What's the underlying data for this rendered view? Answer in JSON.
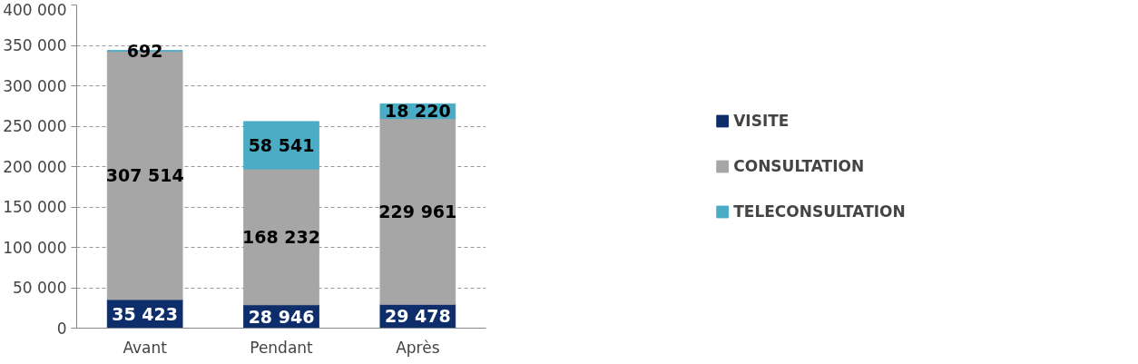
{
  "chart_data": {
    "type": "bar",
    "stacked": true,
    "categories": [
      "Avant",
      "Pendant",
      "Après"
    ],
    "series": [
      {
        "name": "VISITE",
        "color": "#0e2d6b",
        "values": [
          35423,
          28946,
          29478
        ]
      },
      {
        "name": "CONSULTATION",
        "color": "#a6a6a6",
        "values": [
          307514,
          168232,
          229961
        ]
      },
      {
        "name": "TELECONSULTATION",
        "color": "#4bacc6",
        "values": [
          692,
          58541,
          18220
        ]
      }
    ],
    "ylim": [
      0,
      400000
    ],
    "yticks": [
      {
        "value": 0,
        "label": "0"
      },
      {
        "value": 50000,
        "label": "50 000"
      },
      {
        "value": 100000,
        "label": "100 000"
      },
      {
        "value": 150000,
        "label": "150 000"
      },
      {
        "value": 200000,
        "label": "200 000"
      },
      {
        "value": 250000,
        "label": "250 000"
      },
      {
        "value": 300000,
        "label": "300 000"
      },
      {
        "value": 350000,
        "label": "350 000"
      },
      {
        "value": 400000,
        "label": "400 000"
      }
    ],
    "grid": "y",
    "legend": "right",
    "data_labels": true
  }
}
